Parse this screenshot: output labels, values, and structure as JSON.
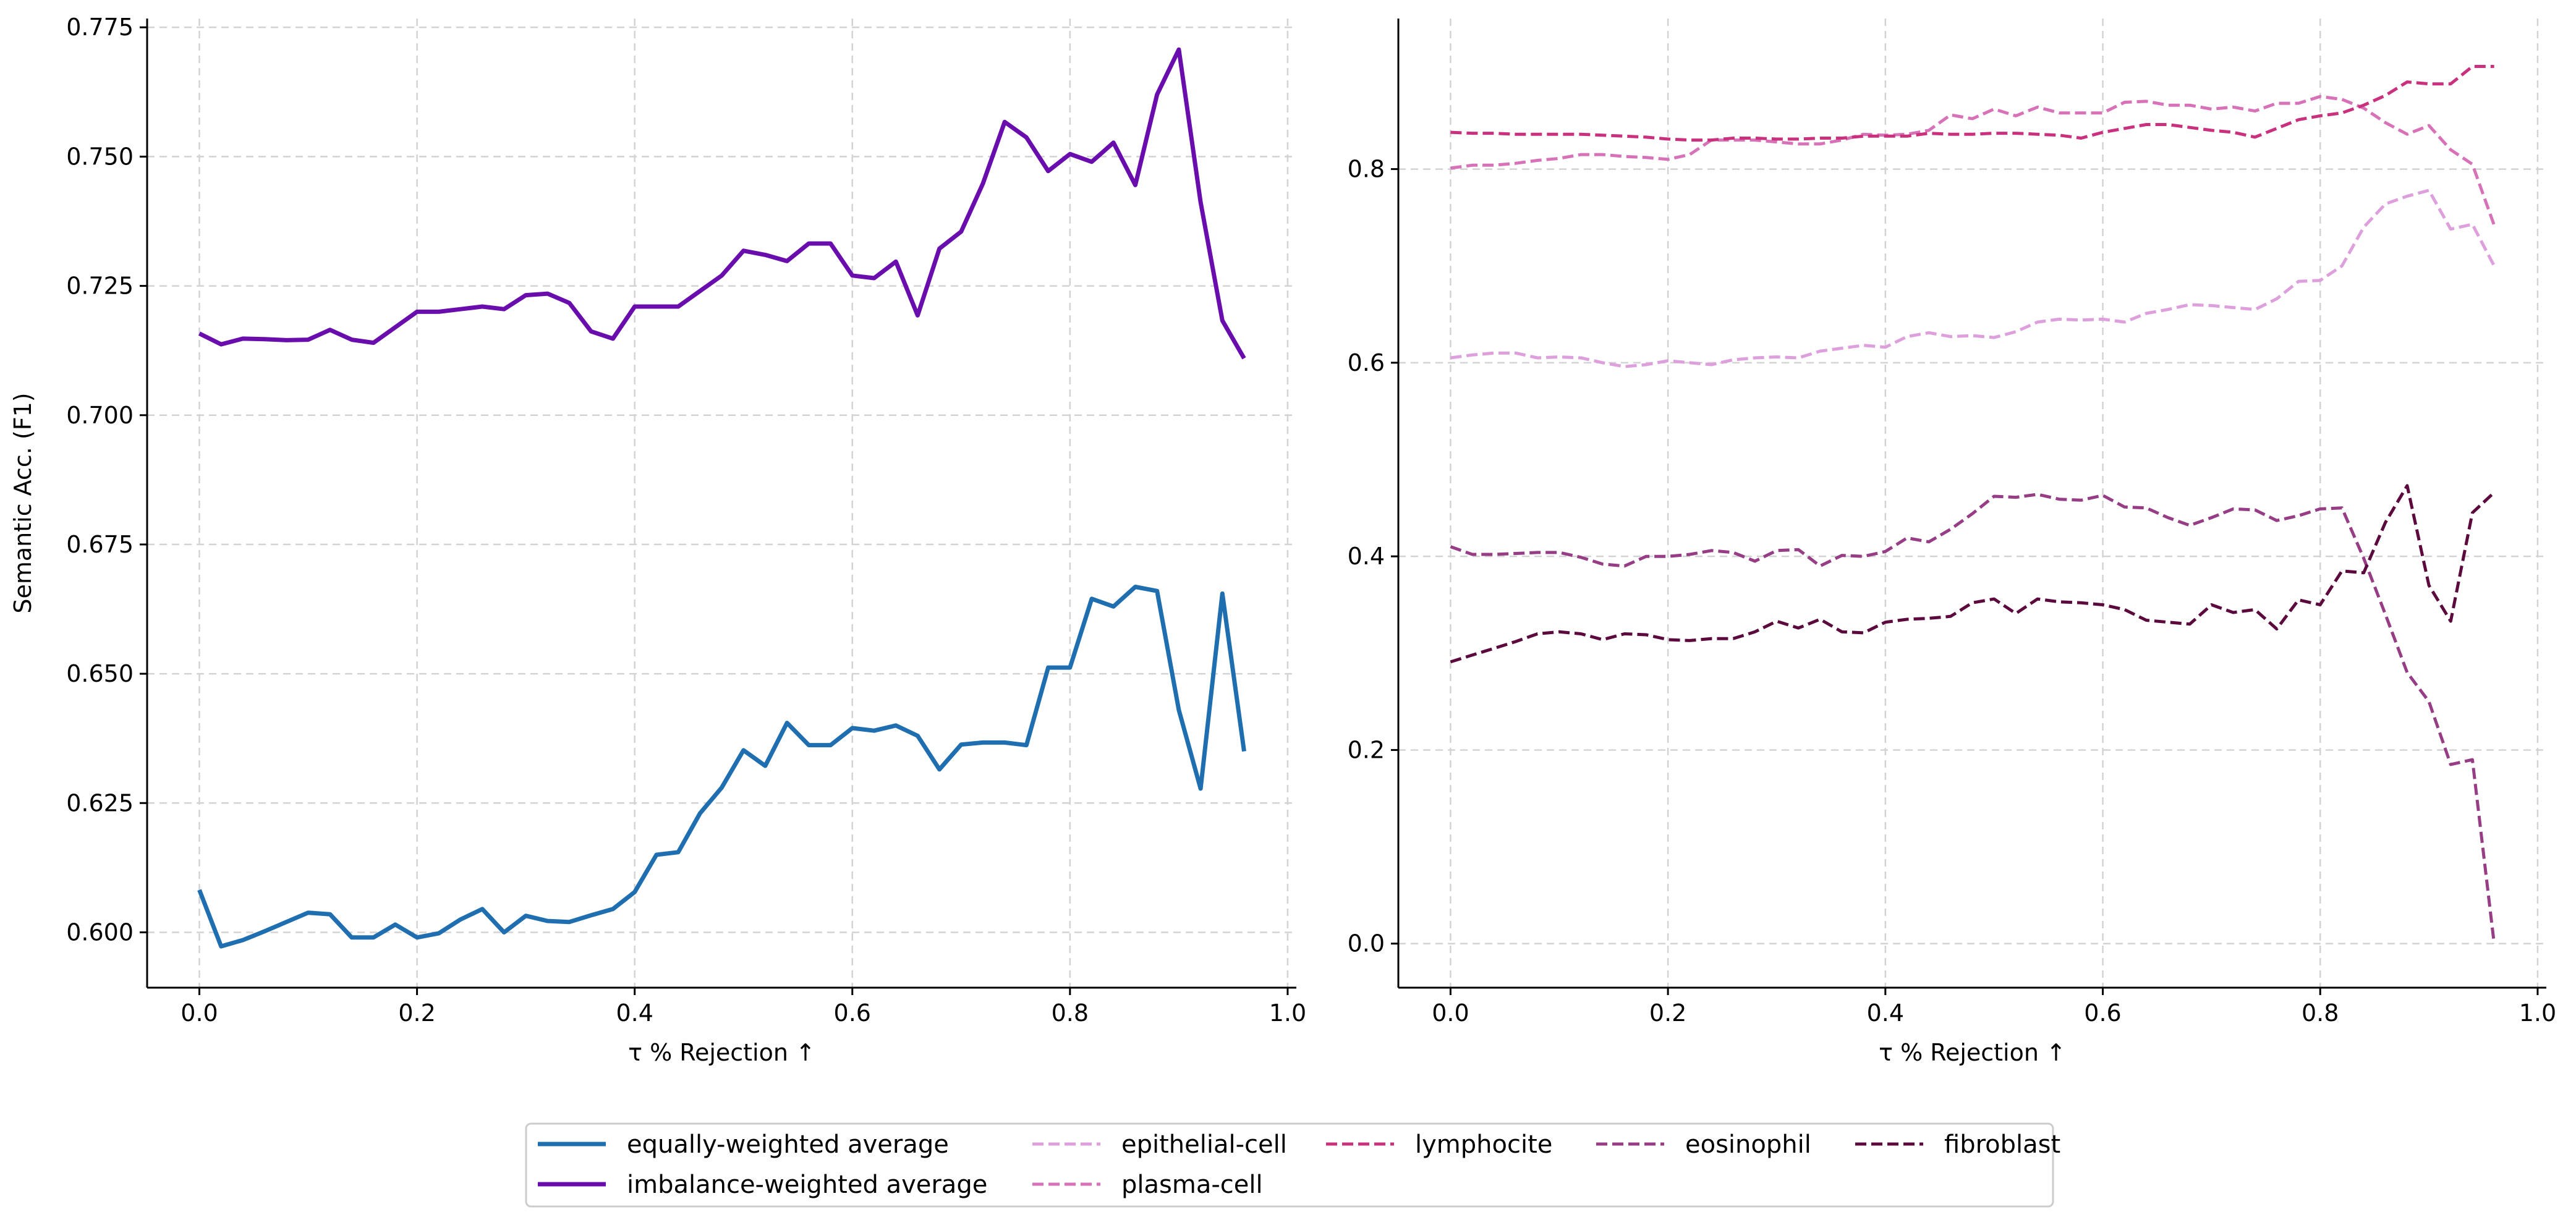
{
  "chart_data": [
    {
      "type": "line",
      "xlabel": "τ % Rejection ↑",
      "ylabel": "Semantic Acc. (F1)",
      "xlim": [
        -0.048,
        1.008
      ],
      "ylim": [
        0.5893,
        0.7767
      ],
      "xticks": [
        0.0,
        0.2,
        0.4,
        0.6,
        0.8,
        1.0
      ],
      "xtick_labels": [
        "0.0",
        "0.2",
        "0.4",
        "0.6",
        "0.8",
        "1.0"
      ],
      "yticks": [
        0.6,
        0.625,
        0.65,
        0.675,
        0.7,
        0.725,
        0.75,
        0.775
      ],
      "ytick_labels": [
        "0.600",
        "0.625",
        "0.650",
        "0.675",
        "0.700",
        "0.725",
        "0.750",
        "0.775"
      ],
      "grid": true,
      "x": [
        0.0,
        0.02,
        0.04,
        0.06,
        0.08,
        0.1,
        0.12,
        0.14,
        0.16,
        0.18,
        0.2,
        0.22,
        0.24,
        0.26,
        0.28,
        0.3,
        0.32,
        0.34,
        0.36,
        0.38,
        0.4,
        0.42,
        0.44,
        0.46,
        0.48,
        0.5,
        0.52,
        0.54,
        0.56,
        0.58,
        0.6,
        0.62,
        0.64,
        0.66,
        0.68,
        0.7,
        0.72,
        0.74,
        0.76,
        0.78,
        0.8,
        0.82,
        0.84,
        0.86,
        0.88,
        0.9,
        0.92,
        0.94,
        0.96
      ],
      "series": [
        {
          "name": "equally-weighted average",
          "color": "#1f6fb0",
          "style": "solid",
          "values": [
            0.6082,
            0.5973,
            0.5985,
            0.6002,
            0.602,
            0.6038,
            0.6035,
            0.599,
            0.599,
            0.6015,
            0.599,
            0.5998,
            0.6025,
            0.6045,
            0.6,
            0.6032,
            0.6022,
            0.602,
            0.6033,
            0.6045,
            0.6078,
            0.615,
            0.6155,
            0.623,
            0.628,
            0.6352,
            0.6322,
            0.6405,
            0.6362,
            0.6362,
            0.6395,
            0.639,
            0.64,
            0.638,
            0.6315,
            0.6363,
            0.6367,
            0.6367,
            0.6362,
            0.6512,
            0.6512,
            0.6645,
            0.663,
            0.6668,
            0.666,
            0.643,
            0.6278,
            0.6655,
            0.635
          ]
        },
        {
          "name": "imbalance-weighted average",
          "color": "#6a0dad",
          "style": "solid",
          "values": [
            0.7158,
            0.7137,
            0.7148,
            0.7147,
            0.7145,
            0.7146,
            0.7165,
            0.7146,
            0.714,
            0.717,
            0.72,
            0.72,
            0.7205,
            0.721,
            0.7205,
            0.7232,
            0.7235,
            0.7217,
            0.7162,
            0.7148,
            0.721,
            0.721,
            0.721,
            0.724,
            0.727,
            0.7318,
            0.731,
            0.7298,
            0.7332,
            0.7332,
            0.727,
            0.7265,
            0.7297,
            0.7193,
            0.7322,
            0.7355,
            0.7448,
            0.7567,
            0.7537,
            0.7472,
            0.7505,
            0.749,
            0.7527,
            0.7445,
            0.762,
            0.7707,
            0.7412,
            0.7183,
            0.711
          ]
        }
      ]
    },
    {
      "type": "line",
      "xlabel": "τ % Rejection ↑",
      "ylabel": "",
      "xlim": [
        -0.048,
        1.008
      ],
      "ylim": [
        -0.0455,
        0.9555
      ],
      "xticks": [
        0.0,
        0.2,
        0.4,
        0.6,
        0.8,
        1.0
      ],
      "xtick_labels": [
        "0.0",
        "0.2",
        "0.4",
        "0.6",
        "0.8",
        "1.0"
      ],
      "yticks": [
        0.0,
        0.2,
        0.4,
        0.6,
        0.8
      ],
      "ytick_labels": [
        "0.0",
        "0.2",
        "0.4",
        "0.6",
        "0.8"
      ],
      "grid": true,
      "x": [
        0.0,
        0.02,
        0.04,
        0.06,
        0.08,
        0.1,
        0.12,
        0.14,
        0.16,
        0.18,
        0.2,
        0.22,
        0.24,
        0.26,
        0.28,
        0.3,
        0.32,
        0.34,
        0.36,
        0.38,
        0.4,
        0.42,
        0.44,
        0.46,
        0.48,
        0.5,
        0.52,
        0.54,
        0.56,
        0.58,
        0.6,
        0.62,
        0.64,
        0.66,
        0.68,
        0.7,
        0.72,
        0.74,
        0.76,
        0.78,
        0.8,
        0.82,
        0.84,
        0.86,
        0.88,
        0.9,
        0.92,
        0.94,
        0.96
      ],
      "series": [
        {
          "name": "epithelial-cell",
          "color": "#dda0dd",
          "style": "dashed",
          "values": [
            0.605,
            0.608,
            0.61,
            0.61,
            0.605,
            0.606,
            0.605,
            0.6,
            0.596,
            0.598,
            0.602,
            0.6,
            0.598,
            0.603,
            0.605,
            0.606,
            0.605,
            0.612,
            0.615,
            0.618,
            0.616,
            0.627,
            0.631,
            0.627,
            0.628,
            0.626,
            0.632,
            0.642,
            0.645,
            0.644,
            0.645,
            0.642,
            0.651,
            0.655,
            0.66,
            0.659,
            0.657,
            0.655,
            0.666,
            0.684,
            0.685,
            0.7,
            0.74,
            0.764,
            0.772,
            0.778,
            0.738,
            0.743,
            0.7
          ]
        },
        {
          "name": "plasma-cell",
          "color": "#d872b8",
          "style": "dashed",
          "values": [
            0.801,
            0.804,
            0.804,
            0.806,
            0.809,
            0.811,
            0.815,
            0.815,
            0.813,
            0.812,
            0.81,
            0.815,
            0.83,
            0.83,
            0.83,
            0.828,
            0.826,
            0.826,
            0.83,
            0.836,
            0.835,
            0.836,
            0.84,
            0.856,
            0.852,
            0.862,
            0.855,
            0.864,
            0.858,
            0.858,
            0.858,
            0.869,
            0.87,
            0.866,
            0.866,
            0.862,
            0.864,
            0.86,
            0.868,
            0.868,
            0.875,
            0.872,
            0.863,
            0.848,
            0.836,
            0.845,
            0.82,
            0.805,
            0.742
          ]
        },
        {
          "name": "lymphocite",
          "color": "#c9317e",
          "style": "dashed",
          "values": [
            0.838,
            0.837,
            0.837,
            0.836,
            0.836,
            0.836,
            0.836,
            0.835,
            0.834,
            0.833,
            0.831,
            0.83,
            0.83,
            0.832,
            0.832,
            0.831,
            0.831,
            0.832,
            0.832,
            0.834,
            0.834,
            0.834,
            0.837,
            0.836,
            0.836,
            0.837,
            0.837,
            0.836,
            0.835,
            0.832,
            0.838,
            0.842,
            0.846,
            0.846,
            0.843,
            0.84,
            0.838,
            0.833,
            0.842,
            0.851,
            0.855,
            0.858,
            0.866,
            0.876,
            0.89,
            0.888,
            0.888,
            0.906,
            0.906
          ]
        },
        {
          "name": "eosinophil",
          "color": "#963d86",
          "style": "dashed",
          "values": [
            0.41,
            0.402,
            0.402,
            0.403,
            0.404,
            0.404,
            0.399,
            0.392,
            0.39,
            0.4,
            0.4,
            0.402,
            0.406,
            0.404,
            0.395,
            0.406,
            0.407,
            0.39,
            0.401,
            0.4,
            0.405,
            0.419,
            0.415,
            0.428,
            0.444,
            0.462,
            0.461,
            0.464,
            0.459,
            0.458,
            0.463,
            0.451,
            0.45,
            0.44,
            0.432,
            0.44,
            0.449,
            0.448,
            0.437,
            0.442,
            0.449,
            0.45,
            0.398,
            0.34,
            0.28,
            0.25,
            0.185,
            0.19,
            0.0
          ]
        },
        {
          "name": "fibroblast",
          "color": "#5c0a3e",
          "style": "dashed",
          "values": [
            0.291,
            0.298,
            0.305,
            0.312,
            0.32,
            0.322,
            0.32,
            0.314,
            0.32,
            0.319,
            0.314,
            0.313,
            0.315,
            0.315,
            0.322,
            0.333,
            0.326,
            0.335,
            0.322,
            0.321,
            0.332,
            0.335,
            0.336,
            0.338,
            0.352,
            0.356,
            0.341,
            0.356,
            0.353,
            0.352,
            0.35,
            0.345,
            0.334,
            0.332,
            0.33,
            0.35,
            0.342,
            0.345,
            0.325,
            0.355,
            0.35,
            0.385,
            0.383,
            0.435,
            0.473,
            0.37,
            0.333,
            0.445,
            0.466
          ]
        }
      ]
    }
  ],
  "legend": {
    "placement": "bottom-center",
    "columns": 5
  }
}
